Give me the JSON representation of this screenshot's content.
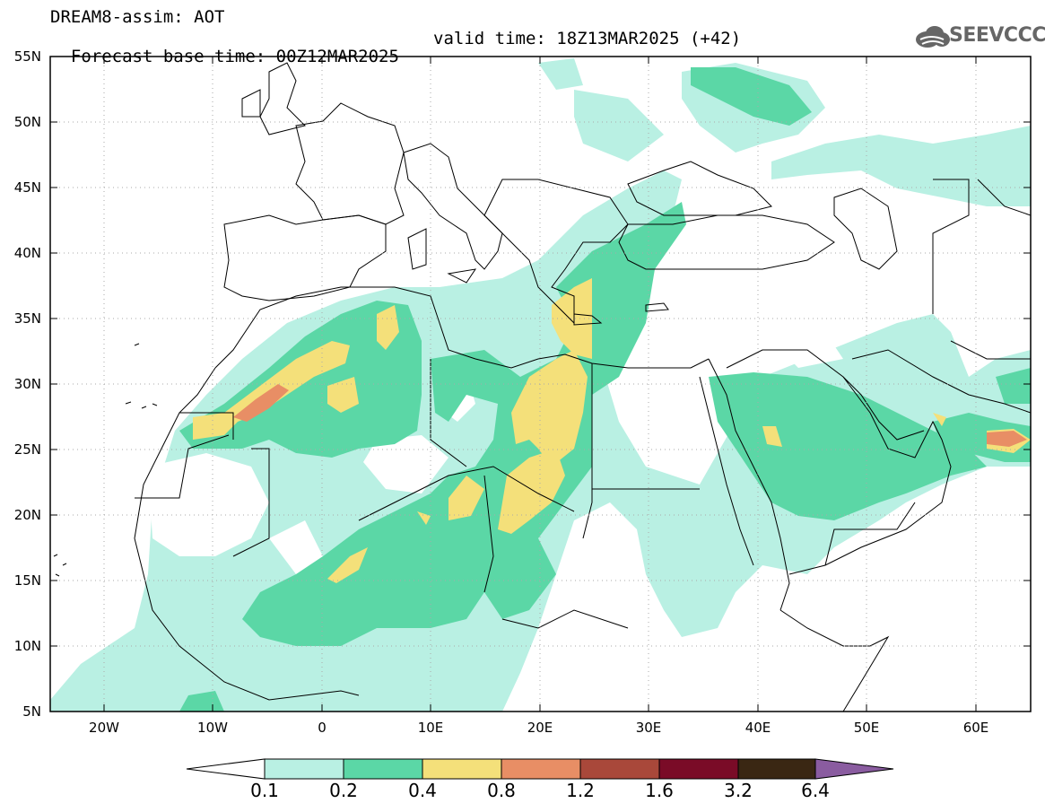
{
  "header": {
    "line1": "DREAM8-assim: AOT",
    "line2": "Forecast base time: 00Z12MAR2025",
    "valid": "valid time: 18Z13MAR2025 (+42)"
  },
  "logo": {
    "text": "SEEVCCC",
    "icon": "cloud-icon"
  },
  "map": {
    "lat_labels": [
      "55N",
      "50N",
      "45N",
      "40N",
      "35N",
      "30N",
      "25N",
      "20N",
      "15N",
      "10N",
      "5N"
    ],
    "lon_labels": [
      "20W",
      "10W",
      "0",
      "10E",
      "20E",
      "30E",
      "40E",
      "50E",
      "60E"
    ],
    "extent": {
      "lon": [
        -25,
        65
      ],
      "lat": [
        5,
        55
      ]
    }
  },
  "colorbar": {
    "labels": [
      "0.1",
      "0.2",
      "0.4",
      "0.8",
      "1.2",
      "1.6",
      "3.2",
      "6.4"
    ],
    "colors": [
      "#ffffff",
      "#b9f0e3",
      "#5bd7a6",
      "#f4e07a",
      "#e88e65",
      "#a9483a",
      "#7a0b27",
      "#3a2713",
      "#8a5ca0"
    ]
  }
}
